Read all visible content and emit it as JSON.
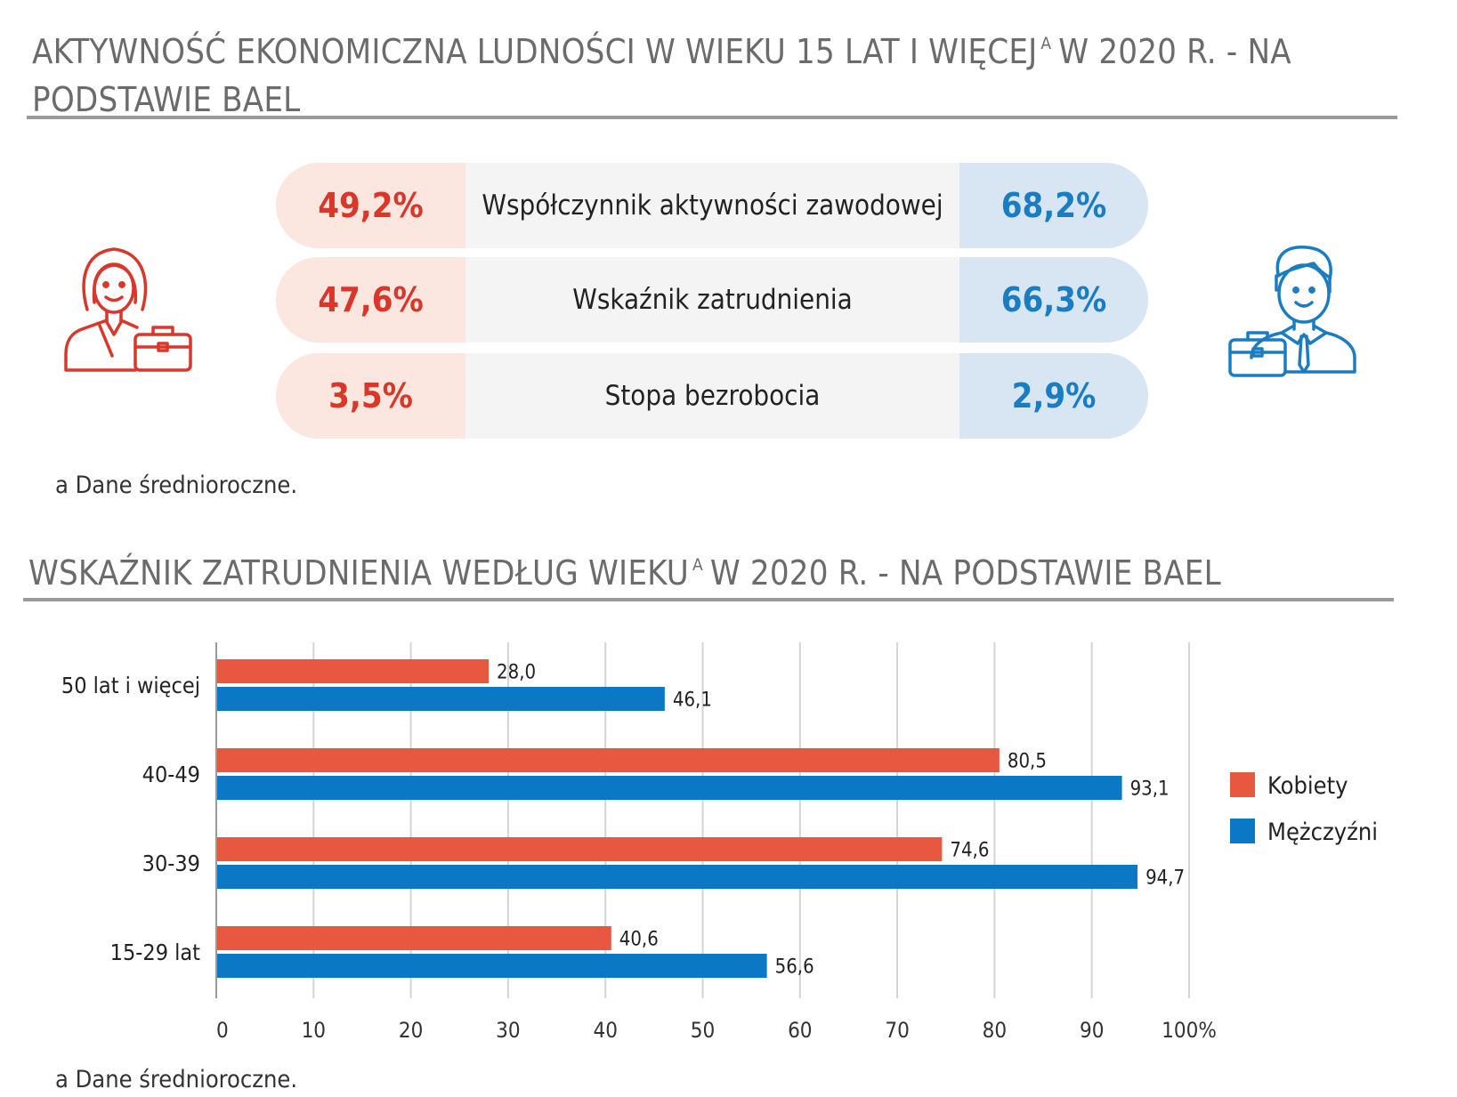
{
  "header": {
    "title_main": "AKTYWNOŚĆ EKONOMICZNA LUDNOŚCI W WIEKU 15 LAT I WIĘCEJ",
    "title_sup": "a",
    "title_rest": "W 2020 R. - NA PODSTAWIE BAEL"
  },
  "stats": {
    "rows": [
      {
        "label": "Współczynnik aktywności zawodowej",
        "female": "49,2%",
        "male": "68,2%"
      },
      {
        "label": "Wskaźnik zatrudnienia",
        "female": "47,6%",
        "male": "66,3%"
      },
      {
        "label": "Stopa bezrobocia",
        "female": "3,5%",
        "male": "2,9%"
      }
    ],
    "footnote": "a Dane średnioroczne."
  },
  "icons": {
    "female": "woman-with-briefcase-icon",
    "male": "man-with-briefcase-icon"
  },
  "colors": {
    "female": "#e8573f",
    "male": "#0a78c4",
    "female_text": "#d9372a",
    "male_text": "#1a7dc2"
  },
  "chart_section": {
    "title_main": "WSKAŹNIK ZATRUDNIENIA WEDŁUG WIEKU",
    "title_sup": "a",
    "title_rest": "W 2020 R. - NA PODSTAWIE BAEL",
    "footnote": "a Dane średnioroczne."
  },
  "chart_data": {
    "type": "bar",
    "orientation": "horizontal",
    "categories": [
      "50 lat i więcej",
      "40-49",
      "30-39",
      "15-29 lat"
    ],
    "series": [
      {
        "name": "Kobiety",
        "values": [
          28.0,
          80.5,
          74.6,
          40.6
        ],
        "labels": [
          "28,0",
          "80,5",
          "74,6",
          "40,6"
        ],
        "color": "#e8573f"
      },
      {
        "name": "Mężczyźni",
        "values": [
          46.1,
          93.1,
          94.7,
          56.6
        ],
        "labels": [
          "46,1",
          "93,1",
          "94,7",
          "56,6"
        ],
        "color": "#0a78c4"
      }
    ],
    "xlim": [
      0,
      100
    ],
    "xticks": [
      0,
      10,
      20,
      30,
      40,
      50,
      60,
      70,
      80,
      90,
      100
    ],
    "xtick_labels": [
      "0",
      "10",
      "20",
      "30",
      "40",
      "50",
      "60",
      "70",
      "80",
      "90",
      "100%"
    ],
    "grid": "vertical",
    "legend_position": "right"
  }
}
